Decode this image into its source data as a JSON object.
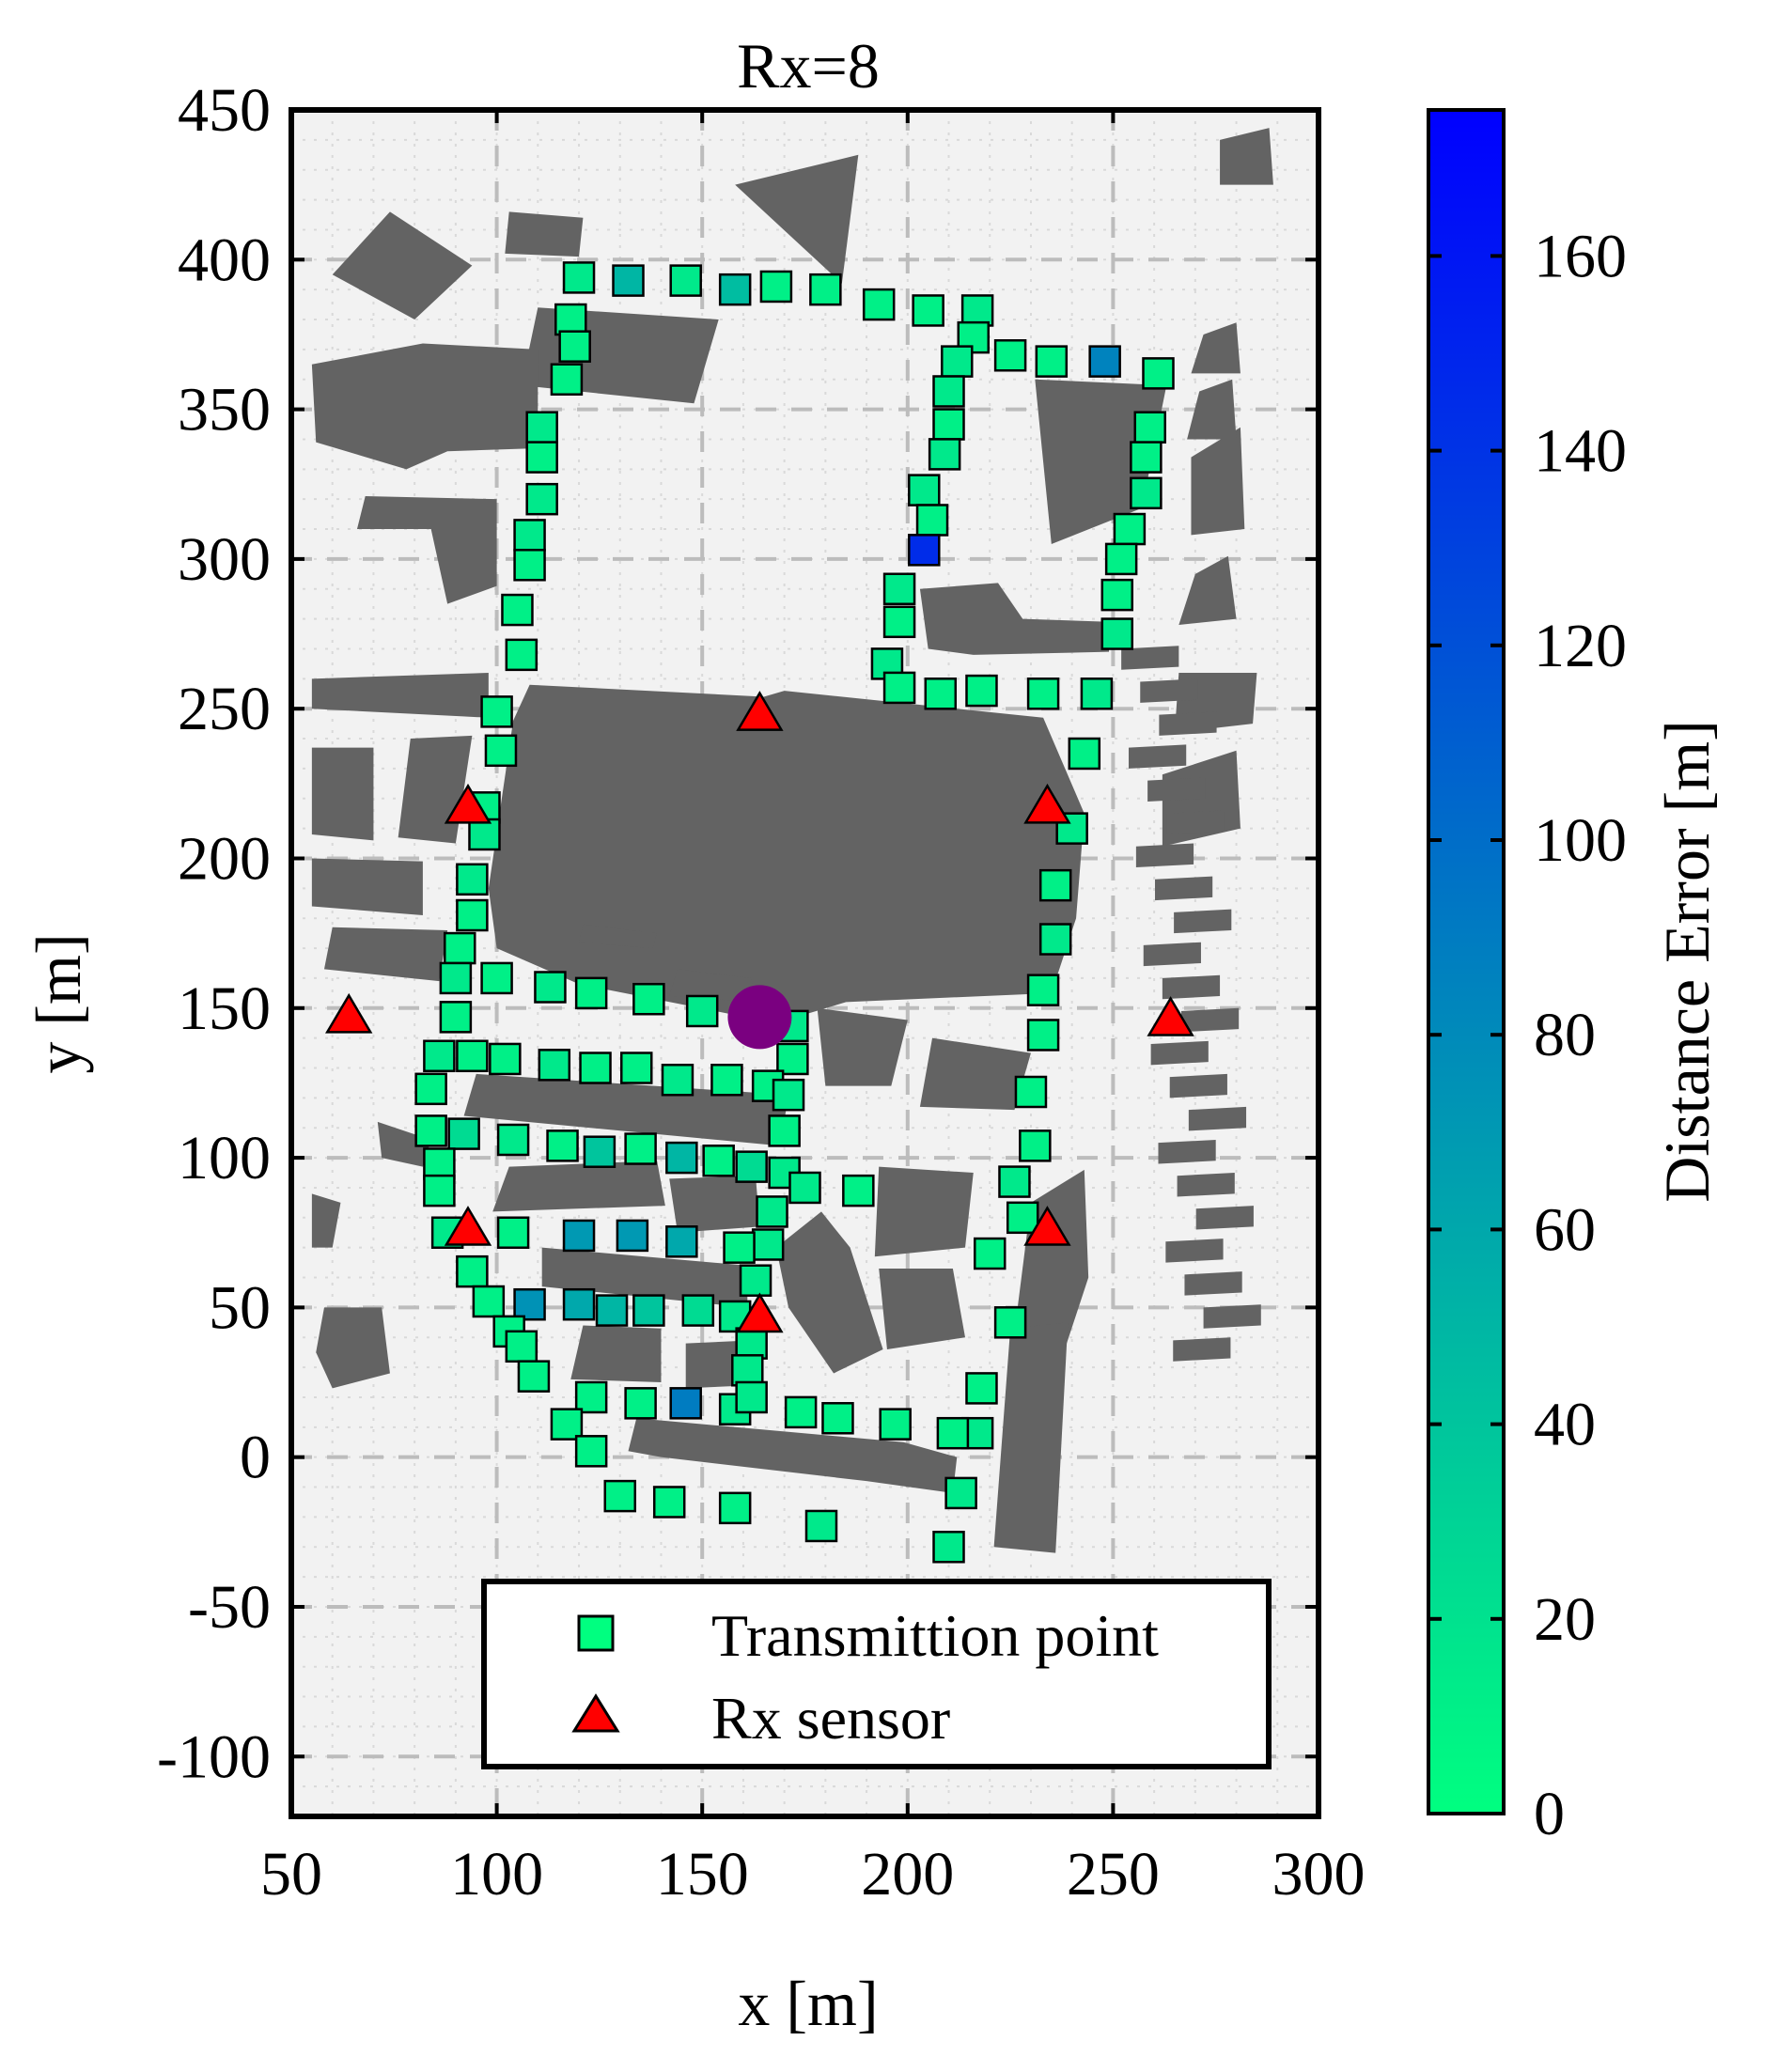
{
  "chart_data": {
    "type": "scatter",
    "title": "Rx=8",
    "xlabel": "x [m]",
    "ylabel": "y [m]",
    "xlim": [
      50,
      300
    ],
    "ylim": [
      -120,
      450
    ],
    "x_ticks": [
      50,
      100,
      150,
      200,
      250,
      300
    ],
    "y_ticks": [
      -100,
      -50,
      0,
      50,
      100,
      150,
      200,
      250,
      300,
      350,
      400,
      450
    ],
    "grid": true,
    "legend_position": "bottom-right",
    "colorbar": {
      "label": "Distance Error [m]",
      "range": [
        0,
        175
      ],
      "ticks": [
        0,
        20,
        40,
        60,
        80,
        100,
        120,
        140,
        160
      ],
      "colormap": [
        "#00ff80",
        "#0000ff"
      ]
    },
    "series": [
      {
        "name": "Transmittion point",
        "marker": "square",
        "points": [
          {
            "x": 120,
            "y": 394,
            "e": 15
          },
          {
            "x": 132,
            "y": 393,
            "e": 50
          },
          {
            "x": 146,
            "y": 393,
            "e": 15
          },
          {
            "x": 158,
            "y": 390,
            "e": 45
          },
          {
            "x": 168,
            "y": 391,
            "e": 10
          },
          {
            "x": 180,
            "y": 390,
            "e": 10
          },
          {
            "x": 193,
            "y": 385,
            "e": 10
          },
          {
            "x": 205,
            "y": 383,
            "e": 10
          },
          {
            "x": 217,
            "y": 383,
            "e": 15
          },
          {
            "x": 216,
            "y": 374,
            "e": 10
          },
          {
            "x": 212,
            "y": 366,
            "e": 15
          },
          {
            "x": 225,
            "y": 368,
            "e": 10
          },
          {
            "x": 235,
            "y": 366,
            "e": 10
          },
          {
            "x": 248,
            "y": 366,
            "e": 85
          },
          {
            "x": 261,
            "y": 362,
            "e": 10
          },
          {
            "x": 118,
            "y": 380,
            "e": 10
          },
          {
            "x": 119,
            "y": 371,
            "e": 10
          },
          {
            "x": 117,
            "y": 360,
            "e": 10
          },
          {
            "x": 111,
            "y": 344,
            "e": 15
          },
          {
            "x": 111,
            "y": 334,
            "e": 10
          },
          {
            "x": 111,
            "y": 320,
            "e": 15
          },
          {
            "x": 108,
            "y": 308,
            "e": 15
          },
          {
            "x": 108,
            "y": 298,
            "e": 10
          },
          {
            "x": 105,
            "y": 283,
            "e": 10
          },
          {
            "x": 106,
            "y": 268,
            "e": 10
          },
          {
            "x": 210,
            "y": 356,
            "e": 15
          },
          {
            "x": 210,
            "y": 345,
            "e": 10
          },
          {
            "x": 209,
            "y": 335,
            "e": 15
          },
          {
            "x": 204,
            "y": 323,
            "e": 15
          },
          {
            "x": 206,
            "y": 313,
            "e": 10
          },
          {
            "x": 204,
            "y": 303,
            "e": 145
          },
          {
            "x": 198,
            "y": 290,
            "e": 15
          },
          {
            "x": 198,
            "y": 279,
            "e": 10
          },
          {
            "x": 195,
            "y": 265,
            "e": 15
          },
          {
            "x": 198,
            "y": 257,
            "e": 10
          },
          {
            "x": 208,
            "y": 255,
            "e": 10
          },
          {
            "x": 218,
            "y": 256,
            "e": 10
          },
          {
            "x": 233,
            "y": 255,
            "e": 10
          },
          {
            "x": 246,
            "y": 255,
            "e": 15
          },
          {
            "x": 259,
            "y": 344,
            "e": 10
          },
          {
            "x": 258,
            "y": 334,
            "e": 10
          },
          {
            "x": 258,
            "y": 322,
            "e": 15
          },
          {
            "x": 254,
            "y": 310,
            "e": 10
          },
          {
            "x": 252,
            "y": 300,
            "e": 10
          },
          {
            "x": 251,
            "y": 288,
            "e": 10
          },
          {
            "x": 251,
            "y": 275,
            "e": 15
          },
          {
            "x": 243,
            "y": 235,
            "e": 10
          },
          {
            "x": 240,
            "y": 210,
            "e": 15
          },
          {
            "x": 236,
            "y": 191,
            "e": 10
          },
          {
            "x": 236,
            "y": 173,
            "e": 15
          },
          {
            "x": 233,
            "y": 156,
            "e": 10
          },
          {
            "x": 233,
            "y": 141,
            "e": 10
          },
          {
            "x": 230,
            "y": 122,
            "e": 10
          },
          {
            "x": 231,
            "y": 104,
            "e": 10
          },
          {
            "x": 226,
            "y": 92,
            "e": 15
          },
          {
            "x": 228,
            "y": 80,
            "e": 10
          },
          {
            "x": 220,
            "y": 68,
            "e": 10
          },
          {
            "x": 225,
            "y": 45,
            "e": 10
          },
          {
            "x": 218,
            "y": 23,
            "e": 10
          },
          {
            "x": 217,
            "y": 8,
            "e": 15
          },
          {
            "x": 211,
            "y": 8,
            "e": 10
          },
          {
            "x": 213,
            "y": -12,
            "e": 15
          },
          {
            "x": 210,
            "y": -30,
            "e": 15
          },
          {
            "x": 100,
            "y": 249,
            "e": 10
          },
          {
            "x": 101,
            "y": 236,
            "e": 10
          },
          {
            "x": 97,
            "y": 217,
            "e": 10
          },
          {
            "x": 97,
            "y": 208,
            "e": 15
          },
          {
            "x": 94,
            "y": 193,
            "e": 15
          },
          {
            "x": 94,
            "y": 181,
            "e": 10
          },
          {
            "x": 91,
            "y": 170,
            "e": 10
          },
          {
            "x": 90,
            "y": 160,
            "e": 15
          },
          {
            "x": 100,
            "y": 160,
            "e": 10
          },
          {
            "x": 113,
            "y": 157,
            "e": 15
          },
          {
            "x": 123,
            "y": 155,
            "e": 10
          },
          {
            "x": 137,
            "y": 153,
            "e": 10
          },
          {
            "x": 150,
            "y": 149,
            "e": 15
          },
          {
            "x": 172,
            "y": 144,
            "e": 15
          },
          {
            "x": 172,
            "y": 133,
            "e": 10
          },
          {
            "x": 90,
            "y": 147,
            "e": 10
          },
          {
            "x": 86,
            "y": 134,
            "e": 15
          },
          {
            "x": 94,
            "y": 134,
            "e": 10
          },
          {
            "x": 102,
            "y": 133,
            "e": 10
          },
          {
            "x": 114,
            "y": 131,
            "e": 15
          },
          {
            "x": 124,
            "y": 130,
            "e": 10
          },
          {
            "x": 134,
            "y": 130,
            "e": 10
          },
          {
            "x": 144,
            "y": 126,
            "e": 15
          },
          {
            "x": 156,
            "y": 126,
            "e": 10
          },
          {
            "x": 166,
            "y": 124,
            "e": 10
          },
          {
            "x": 171,
            "y": 121,
            "e": 15
          },
          {
            "x": 84,
            "y": 123,
            "e": 10
          },
          {
            "x": 84,
            "y": 109,
            "e": 10
          },
          {
            "x": 92,
            "y": 108,
            "e": 25
          },
          {
            "x": 104,
            "y": 106,
            "e": 15
          },
          {
            "x": 116,
            "y": 104,
            "e": 10
          },
          {
            "x": 125,
            "y": 102,
            "e": 40
          },
          {
            "x": 135,
            "y": 103,
            "e": 10
          },
          {
            "x": 145,
            "y": 100,
            "e": 50
          },
          {
            "x": 154,
            "y": 99,
            "e": 10
          },
          {
            "x": 162,
            "y": 97,
            "e": 25
          },
          {
            "x": 170,
            "y": 95,
            "e": 15
          },
          {
            "x": 170,
            "y": 109,
            "e": 10
          },
          {
            "x": 175,
            "y": 90,
            "e": 15
          },
          {
            "x": 188,
            "y": 89,
            "e": 10
          },
          {
            "x": 86,
            "y": 98,
            "e": 10
          },
          {
            "x": 86,
            "y": 89,
            "e": 10
          },
          {
            "x": 88,
            "y": 75,
            "e": 15
          },
          {
            "x": 104,
            "y": 75,
            "e": 10
          },
          {
            "x": 120,
            "y": 74,
            "e": 70
          },
          {
            "x": 133,
            "y": 74,
            "e": 70
          },
          {
            "x": 145,
            "y": 72,
            "e": 60
          },
          {
            "x": 167,
            "y": 82,
            "e": 15
          },
          {
            "x": 166,
            "y": 71,
            "e": 15
          },
          {
            "x": 159,
            "y": 70,
            "e": 10
          },
          {
            "x": 163,
            "y": 59,
            "e": 15
          },
          {
            "x": 94,
            "y": 62,
            "e": 10
          },
          {
            "x": 98,
            "y": 52,
            "e": 10
          },
          {
            "x": 108,
            "y": 51,
            "e": 75
          },
          {
            "x": 120,
            "y": 51,
            "e": 60
          },
          {
            "x": 128,
            "y": 49,
            "e": 50
          },
          {
            "x": 137,
            "y": 49,
            "e": 40
          },
          {
            "x": 149,
            "y": 49,
            "e": 25
          },
          {
            "x": 158,
            "y": 47,
            "e": 15
          },
          {
            "x": 162,
            "y": 38,
            "e": 15
          },
          {
            "x": 103,
            "y": 42,
            "e": 10
          },
          {
            "x": 106,
            "y": 37,
            "e": 10
          },
          {
            "x": 109,
            "y": 27,
            "e": 10
          },
          {
            "x": 123,
            "y": 20,
            "e": 10
          },
          {
            "x": 135,
            "y": 18,
            "e": 10
          },
          {
            "x": 146,
            "y": 18,
            "e": 90
          },
          {
            "x": 158,
            "y": 16,
            "e": 15
          },
          {
            "x": 161,
            "y": 29,
            "e": 15
          },
          {
            "x": 162,
            "y": 20,
            "e": 15
          },
          {
            "x": 174,
            "y": 15,
            "e": 10
          },
          {
            "x": 183,
            "y": 13,
            "e": 10
          },
          {
            "x": 197,
            "y": 11,
            "e": 10
          },
          {
            "x": 117,
            "y": 11,
            "e": 10
          },
          {
            "x": 123,
            "y": 2,
            "e": 10
          },
          {
            "x": 130,
            "y": -13,
            "e": 10
          },
          {
            "x": 142,
            "y": -15,
            "e": 10
          },
          {
            "x": 158,
            "y": -17,
            "e": 10
          },
          {
            "x": 179,
            "y": -23,
            "e": 15
          }
        ]
      },
      {
        "name": "Rx sensor",
        "marker": "triangle",
        "color": "#ff0000",
        "points": [
          {
            "x": 164,
            "y": 248
          },
          {
            "x": 93,
            "y": 217
          },
          {
            "x": 234,
            "y": 217
          },
          {
            "x": 64,
            "y": 147
          },
          {
            "x": 264,
            "y": 146
          },
          {
            "x": 93,
            "y": 76
          },
          {
            "x": 234,
            "y": 76
          },
          {
            "x": 164,
            "y": 47
          }
        ]
      }
    ],
    "highlight_point": {
      "x": 164,
      "y": 147,
      "color": "#7a0080"
    }
  }
}
